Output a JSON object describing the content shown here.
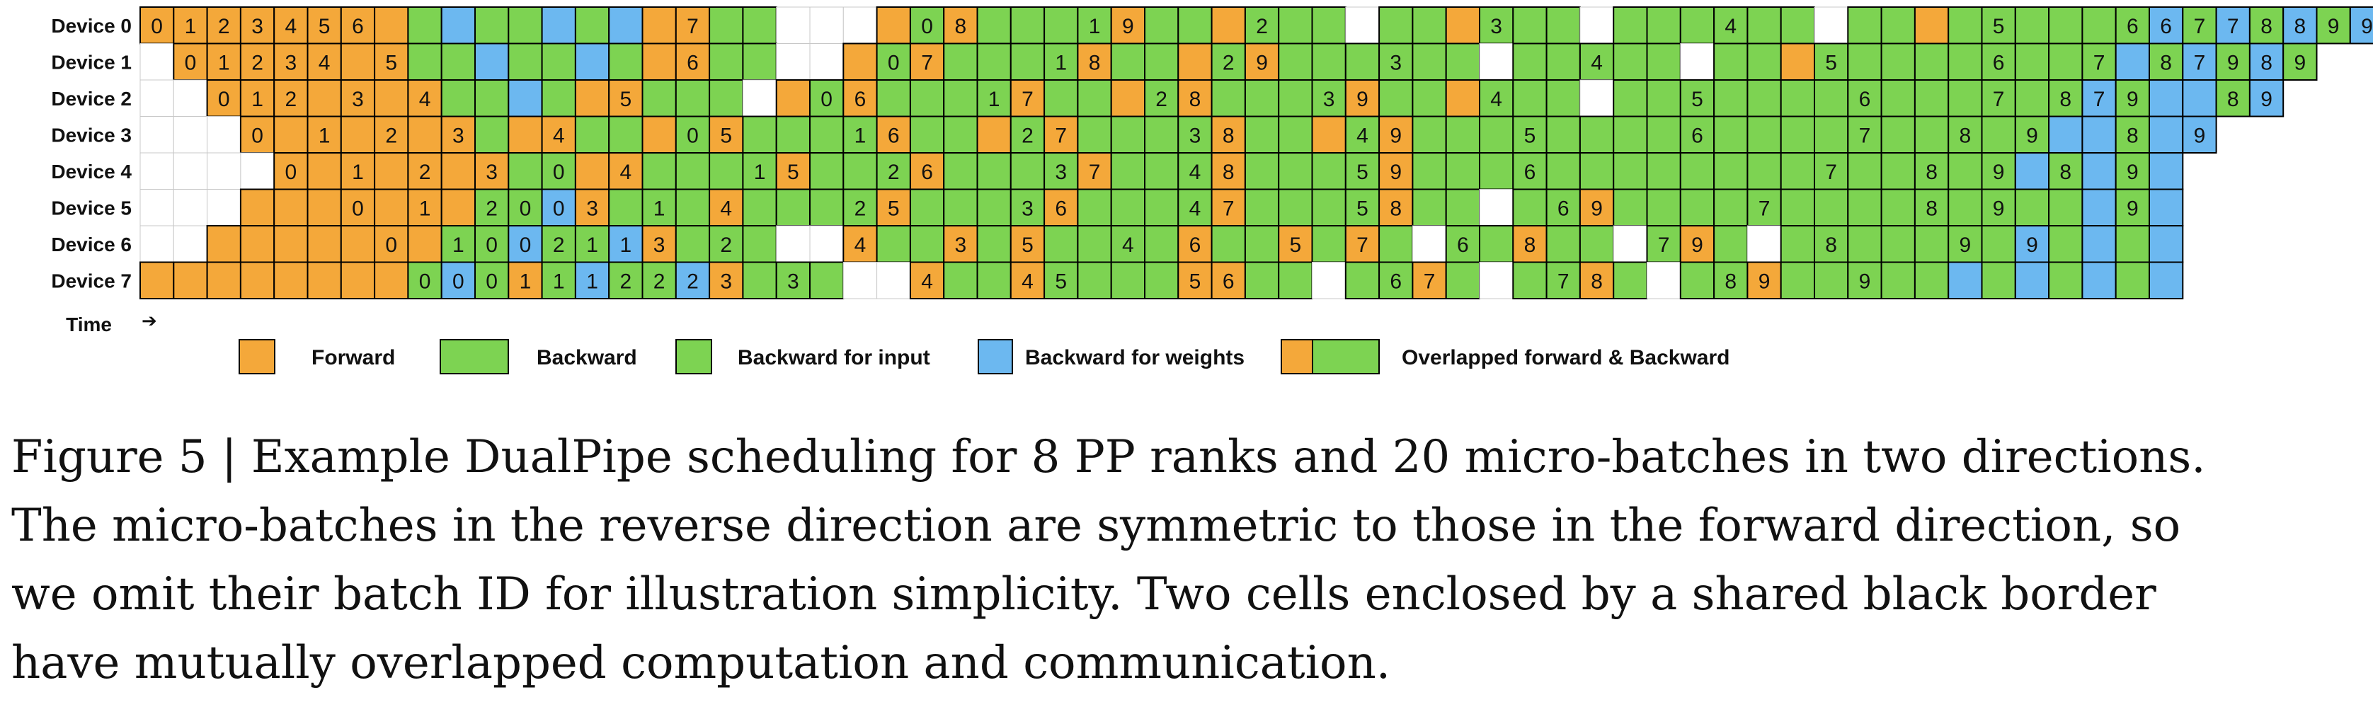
{
  "devices": [
    "Device 0",
    "Device 1",
    "Device 2",
    "Device 3",
    "Device 4",
    "Device 5",
    "Device 6",
    "Device 7"
  ],
  "time_label": "Time",
  "time_arrow": "➔",
  "colors": {
    "forward": "#F4A83A",
    "backward": "#7DD352",
    "weights": "#6CB8F0",
    "empty": "#FFFFFF",
    "border": "#000000",
    "grid": "#C8C8C8"
  },
  "legend": [
    {
      "type": "F",
      "label": "Forward"
    },
    {
      "type": "B",
      "label": "Backward"
    },
    {
      "type": "I",
      "label": "Backward for input"
    },
    {
      "type": "W",
      "label": "Backward for weights"
    },
    {
      "type": "O",
      "label": "Overlapped forward & Backward"
    }
  ],
  "schedule": [
    [
      "F0",
      "F1",
      "F2",
      "F3",
      "F4",
      "F5",
      "F6",
      "F",
      "B",
      "W",
      "B",
      "B",
      "W",
      "B",
      "W",
      "F",
      "F7",
      "B",
      "B",
      ".",
      ".",
      ".",
      "F",
      "B0",
      "F8",
      "B",
      "B",
      "B",
      "B1",
      "F9",
      "B",
      "B",
      "F",
      "B2",
      "B",
      "B",
      ".",
      "B",
      "B",
      "F",
      "B3",
      "B",
      "B",
      ".",
      "B",
      "B",
      "B",
      "B4",
      "B",
      "B",
      ".",
      "B",
      "B",
      "F",
      "B",
      "B5",
      "B",
      "B",
      "B",
      "B6",
      "W6",
      "B7",
      "W7",
      "B8",
      "W8",
      "B9",
      "W9"
    ],
    [
      ".",
      "F0",
      "F1",
      "F2",
      "F3",
      "F4",
      "F",
      "F5",
      "B",
      "B",
      "W",
      "B",
      "B",
      "W",
      "B",
      "F",
      "F6",
      "B",
      "B",
      ".",
      ".",
      "F",
      "B0",
      "F7",
      "B",
      "B",
      "B",
      "B1",
      "F8",
      "B",
      "B",
      "F",
      "B2",
      "F9",
      "B",
      "B",
      "B",
      "B3",
      "B",
      "B",
      ".",
      "B",
      "B",
      "B4",
      "B",
      "B",
      ".",
      "B",
      "B",
      "F",
      "B5",
      "B",
      "B",
      "B",
      "B",
      "B6",
      "B",
      "B",
      "B7",
      "W",
      "B8",
      "W7",
      "B9",
      "W8",
      "B9"
    ],
    [
      ".",
      ".",
      "F0",
      "F1",
      "F2",
      "F",
      "F3",
      "F",
      "F4",
      "B",
      "B",
      "W",
      "B",
      "F",
      "F5",
      "B",
      "B",
      "B",
      ".",
      "F",
      "B0",
      "F6",
      "B",
      "B",
      "B",
      "B1",
      "F7",
      "B",
      "B",
      "F",
      "B2",
      "F8",
      "B",
      "B",
      "B",
      "B3",
      "F9",
      "B",
      "B",
      "F",
      "B4",
      "B",
      "B",
      ".",
      "B",
      "B",
      "B5",
      "B",
      "B",
      "B",
      "B",
      "B6",
      "B",
      "B",
      "B",
      "B7",
      "B",
      "B8",
      "W7",
      "B9",
      "W",
      "W",
      "B8",
      "W9"
    ],
    [
      ".",
      ".",
      ".",
      "F0",
      "F",
      "F1",
      "F",
      "F2",
      "F",
      "F3",
      "B",
      "F",
      "F4",
      "B",
      "B",
      "F",
      "B0",
      "F5",
      "B",
      "B",
      "B",
      "B1",
      "F6",
      "B",
      "B",
      "F",
      "B2",
      "F7",
      "B",
      "B",
      "B",
      "B3",
      "F8",
      "B",
      "B",
      "F",
      "B4",
      "F9",
      "B",
      "B",
      "B",
      "B5",
      "B",
      "B",
      "B",
      "B",
      "B6",
      "B",
      "B",
      "B",
      "B",
      "B7",
      "B",
      "B",
      "B8",
      "B",
      "B9",
      "W",
      "W",
      "B8",
      "W",
      "W9"
    ],
    [
      ".",
      ".",
      ".",
      ".",
      "F0",
      "F",
      "F1",
      "F",
      "F2",
      "F",
      "F3",
      "B",
      "B0",
      "F",
      "F4",
      "B",
      "B",
      "B",
      "B1",
      "F5",
      "B",
      "B",
      "B2",
      "F6",
      "B",
      "B",
      "B",
      "B3",
      "F7",
      "B",
      "B",
      "B4",
      "F8",
      "B",
      "B",
      "B",
      "B5",
      "F9",
      "B",
      "B",
      "B",
      "B6",
      "B",
      "B",
      "B",
      "B",
      "B",
      "B",
      "B",
      "B",
      "B7",
      "B",
      "B",
      "B8",
      "B",
      "B9",
      "W",
      "B8",
      "W",
      "B9",
      "W"
    ],
    [
      ".",
      ".",
      ".",
      "F",
      "F",
      "F",
      "F0",
      "F",
      "F1",
      "F",
      "B2",
      "B0",
      "W0",
      "F3",
      "B",
      "B1",
      "B",
      "F4",
      "B",
      "B",
      "B",
      "B2",
      "F5",
      "B",
      "B",
      "B",
      "B3",
      "F6",
      "B",
      "B",
      "B",
      "B4",
      "F7",
      "B",
      "B",
      "B",
      "B5",
      "F8",
      "B",
      "B",
      ".",
      "B",
      "B6",
      "F9",
      "B",
      "B",
      "B",
      "B",
      "B7",
      "B",
      "B",
      "B",
      "B",
      "B8",
      "B",
      "B9",
      "B",
      "B",
      "W",
      "B9",
      "W"
    ],
    [
      ".",
      ".",
      "F",
      "F",
      "F",
      "F",
      "F",
      "F0",
      "F",
      "B1",
      "B0",
      "W0",
      "B2",
      "B1",
      "W1",
      "F3",
      "B",
      "B2",
      "B",
      ".",
      ".",
      "F4",
      "B",
      "B",
      "F3",
      "B",
      "F5",
      "B",
      "B",
      "B4",
      "B",
      "F6",
      "B",
      "B",
      "F5",
      "B",
      "F7",
      "B",
      ".",
      "B6",
      "B",
      "F8",
      "B",
      "B",
      ".",
      "B7",
      "F9",
      "B",
      ".",
      "B",
      "B8",
      "B",
      "B",
      "B",
      "B9",
      "B",
      "W9",
      "B",
      "W",
      "B",
      "W"
    ],
    [
      "F",
      "F",
      "F",
      "F",
      "F",
      "F",
      "F",
      "F",
      "B0",
      "W0",
      "B0",
      "F1",
      "B1",
      "W1",
      "B2",
      "B2",
      "W2",
      "F3",
      "B",
      "B3",
      "B",
      ".",
      ".",
      "F4",
      "B",
      "B",
      "F4",
      "B5",
      "B",
      "B",
      "B",
      "F5",
      "F6",
      "B",
      "B",
      ".",
      "B",
      "B6",
      "F7",
      "B",
      ".",
      "B",
      "B7",
      "F8",
      "B",
      ".",
      "B",
      "B8",
      "F9",
      "B",
      "B",
      "B9",
      "B",
      "B",
      "W",
      "B",
      "W",
      "B",
      "W",
      "B",
      "W"
    ]
  ],
  "caption": [
    "Figure 5 | Example DualPipe scheduling for 8 PP ranks and 20 micro-batches in two directions.",
    "The micro-batches in the reverse direction are symmetric to those in the forward direction, so",
    "we omit their batch ID for illustration simplicity. Two cells enclosed by a shared black border",
    "have mutually overlapped computation and communication."
  ]
}
